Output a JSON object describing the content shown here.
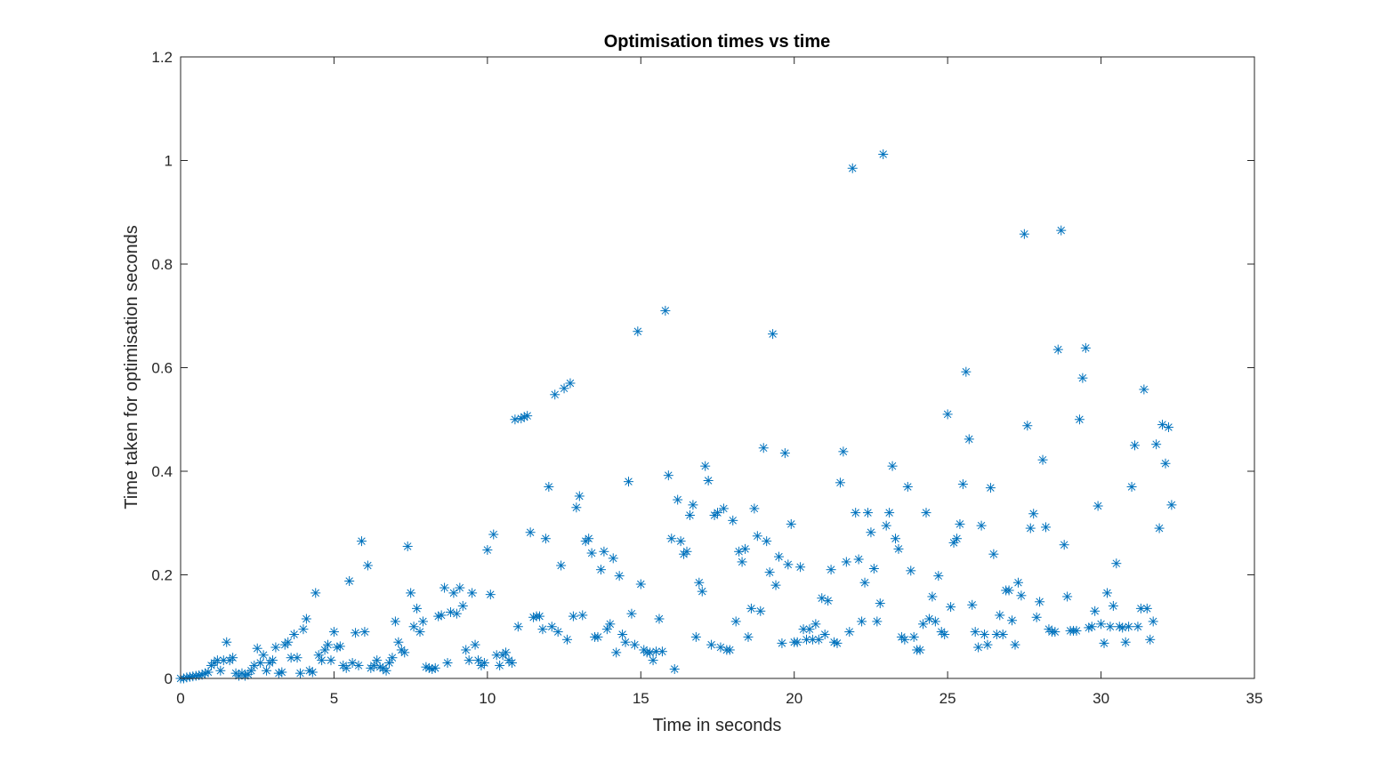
{
  "colors": {
    "marker": "#0072BD",
    "axis": "#262626",
    "background": "#ffffff"
  },
  "chart_data": {
    "type": "scatter",
    "title": "Optimisation times vs time",
    "xlabel": "Time in seconds",
    "ylabel": "Time taken for optimisation seconds",
    "xlim": [
      0,
      35
    ],
    "ylim": [
      0,
      1.2
    ],
    "xticks": [
      "0",
      "5",
      "10",
      "15",
      "20",
      "25",
      "30",
      "35"
    ],
    "yticks": [
      "0",
      "0.2",
      "0.4",
      "0.6",
      "0.8",
      "1",
      "1.2"
    ],
    "marker": "asterisk",
    "grid": false,
    "legend": "none",
    "points": [
      [
        0.0,
        0.0
      ],
      [
        0.1,
        0.0
      ],
      [
        0.2,
        0.002
      ],
      [
        0.3,
        0.003
      ],
      [
        0.4,
        0.004
      ],
      [
        0.5,
        0.005
      ],
      [
        0.6,
        0.006
      ],
      [
        0.7,
        0.007
      ],
      [
        0.8,
        0.01
      ],
      [
        0.9,
        0.012
      ],
      [
        1.0,
        0.025
      ],
      [
        1.1,
        0.03
      ],
      [
        1.2,
        0.035
      ],
      [
        1.3,
        0.015
      ],
      [
        1.4,
        0.035
      ],
      [
        1.5,
        0.07
      ],
      [
        1.6,
        0.035
      ],
      [
        1.7,
        0.04
      ],
      [
        1.8,
        0.01
      ],
      [
        1.9,
        0.005
      ],
      [
        2.0,
        0.01
      ],
      [
        2.1,
        0.005
      ],
      [
        2.2,
        0.008
      ],
      [
        2.3,
        0.015
      ],
      [
        2.4,
        0.025
      ],
      [
        2.5,
        0.058
      ],
      [
        2.6,
        0.03
      ],
      [
        2.7,
        0.045
      ],
      [
        2.8,
        0.015
      ],
      [
        2.9,
        0.03
      ],
      [
        3.0,
        0.035
      ],
      [
        3.1,
        0.06
      ],
      [
        3.2,
        0.01
      ],
      [
        3.3,
        0.012
      ],
      [
        3.4,
        0.065
      ],
      [
        3.5,
        0.07
      ],
      [
        3.6,
        0.04
      ],
      [
        3.7,
        0.085
      ],
      [
        3.8,
        0.04
      ],
      [
        3.9,
        0.01
      ],
      [
        4.0,
        0.095
      ],
      [
        4.1,
        0.115
      ],
      [
        4.2,
        0.015
      ],
      [
        4.3,
        0.012
      ],
      [
        4.4,
        0.165
      ],
      [
        4.5,
        0.045
      ],
      [
        4.6,
        0.035
      ],
      [
        4.7,
        0.055
      ],
      [
        4.8,
        0.065
      ],
      [
        4.9,
        0.035
      ],
      [
        5.0,
        0.09
      ],
      [
        5.1,
        0.06
      ],
      [
        5.2,
        0.062
      ],
      [
        5.3,
        0.025
      ],
      [
        5.4,
        0.02
      ],
      [
        5.5,
        0.188
      ],
      [
        5.6,
        0.03
      ],
      [
        5.7,
        0.088
      ],
      [
        5.8,
        0.025
      ],
      [
        5.9,
        0.265
      ],
      [
        6.0,
        0.09
      ],
      [
        6.1,
        0.218
      ],
      [
        6.2,
        0.02
      ],
      [
        6.3,
        0.025
      ],
      [
        6.4,
        0.035
      ],
      [
        6.5,
        0.022
      ],
      [
        6.6,
        0.02
      ],
      [
        6.7,
        0.015
      ],
      [
        6.8,
        0.03
      ],
      [
        6.9,
        0.04
      ],
      [
        7.0,
        0.11
      ],
      [
        7.1,
        0.07
      ],
      [
        7.2,
        0.055
      ],
      [
        7.3,
        0.05
      ],
      [
        7.4,
        0.255
      ],
      [
        7.5,
        0.165
      ],
      [
        7.6,
        0.1
      ],
      [
        7.7,
        0.135
      ],
      [
        7.8,
        0.09
      ],
      [
        7.9,
        0.11
      ],
      [
        8.0,
        0.022
      ],
      [
        8.1,
        0.02
      ],
      [
        8.2,
        0.018
      ],
      [
        8.3,
        0.02
      ],
      [
        8.4,
        0.12
      ],
      [
        8.5,
        0.122
      ],
      [
        8.6,
        0.175
      ],
      [
        8.7,
        0.03
      ],
      [
        8.8,
        0.128
      ],
      [
        8.9,
        0.165
      ],
      [
        9.0,
        0.125
      ],
      [
        9.1,
        0.175
      ],
      [
        9.2,
        0.14
      ],
      [
        9.3,
        0.055
      ],
      [
        9.4,
        0.035
      ],
      [
        9.5,
        0.165
      ],
      [
        9.6,
        0.065
      ],
      [
        9.7,
        0.035
      ],
      [
        9.8,
        0.025
      ],
      [
        9.9,
        0.03
      ],
      [
        10.0,
        0.248
      ],
      [
        10.1,
        0.162
      ],
      [
        10.2,
        0.278
      ],
      [
        10.3,
        0.045
      ],
      [
        10.4,
        0.025
      ],
      [
        10.5,
        0.045
      ],
      [
        10.6,
        0.05
      ],
      [
        10.7,
        0.035
      ],
      [
        10.8,
        0.03
      ],
      [
        10.9,
        0.5
      ],
      [
        11.0,
        0.1
      ],
      [
        11.1,
        0.502
      ],
      [
        11.2,
        0.505
      ],
      [
        11.3,
        0.507
      ],
      [
        11.4,
        0.282
      ],
      [
        11.5,
        0.118
      ],
      [
        11.6,
        0.12
      ],
      [
        11.7,
        0.12
      ],
      [
        11.8,
        0.095
      ],
      [
        11.9,
        0.27
      ],
      [
        12.0,
        0.37
      ],
      [
        12.1,
        0.1
      ],
      [
        12.2,
        0.548
      ],
      [
        12.3,
        0.09
      ],
      [
        12.4,
        0.218
      ],
      [
        12.5,
        0.56
      ],
      [
        12.6,
        0.075
      ],
      [
        12.7,
        0.57
      ],
      [
        12.8,
        0.12
      ],
      [
        12.9,
        0.33
      ],
      [
        13.0,
        0.352
      ],
      [
        13.1,
        0.122
      ],
      [
        13.2,
        0.265
      ],
      [
        13.3,
        0.27
      ],
      [
        13.4,
        0.242
      ],
      [
        13.5,
        0.08
      ],
      [
        13.6,
        0.08
      ],
      [
        13.7,
        0.21
      ],
      [
        13.8,
        0.245
      ],
      [
        13.9,
        0.095
      ],
      [
        14.0,
        0.105
      ],
      [
        14.1,
        0.232
      ],
      [
        14.2,
        0.05
      ],
      [
        14.3,
        0.198
      ],
      [
        14.4,
        0.085
      ],
      [
        14.5,
        0.07
      ],
      [
        14.6,
        0.38
      ],
      [
        14.7,
        0.125
      ],
      [
        14.8,
        0.065
      ],
      [
        14.9,
        0.67
      ],
      [
        15.0,
        0.182
      ],
      [
        15.1,
        0.055
      ],
      [
        15.2,
        0.05
      ],
      [
        15.3,
        0.05
      ],
      [
        15.4,
        0.035
      ],
      [
        15.5,
        0.052
      ],
      [
        15.6,
        0.115
      ],
      [
        15.7,
        0.052
      ],
      [
        15.8,
        0.71
      ],
      [
        15.9,
        0.392
      ],
      [
        16.0,
        0.27
      ],
      [
        16.1,
        0.018
      ],
      [
        16.2,
        0.345
      ],
      [
        16.3,
        0.265
      ],
      [
        16.4,
        0.24
      ],
      [
        16.5,
        0.245
      ],
      [
        16.6,
        0.315
      ],
      [
        16.7,
        0.335
      ],
      [
        16.8,
        0.08
      ],
      [
        16.9,
        0.185
      ],
      [
        17.0,
        0.168
      ],
      [
        17.1,
        0.41
      ],
      [
        17.2,
        0.382
      ],
      [
        17.3,
        0.065
      ],
      [
        17.4,
        0.315
      ],
      [
        17.5,
        0.32
      ],
      [
        17.6,
        0.06
      ],
      [
        17.7,
        0.328
      ],
      [
        17.8,
        0.055
      ],
      [
        17.9,
        0.055
      ],
      [
        18.0,
        0.305
      ],
      [
        18.1,
        0.11
      ],
      [
        18.2,
        0.245
      ],
      [
        18.3,
        0.225
      ],
      [
        18.4,
        0.25
      ],
      [
        18.5,
        0.08
      ],
      [
        18.6,
        0.135
      ],
      [
        18.7,
        0.328
      ],
      [
        18.8,
        0.275
      ],
      [
        18.9,
        0.13
      ],
      [
        19.0,
        0.445
      ],
      [
        19.1,
        0.265
      ],
      [
        19.2,
        0.205
      ],
      [
        19.3,
        0.665
      ],
      [
        19.4,
        0.18
      ],
      [
        19.5,
        0.235
      ],
      [
        19.6,
        0.068
      ],
      [
        19.7,
        0.435
      ],
      [
        19.8,
        0.22
      ],
      [
        19.9,
        0.298
      ],
      [
        20.0,
        0.07
      ],
      [
        20.1,
        0.07
      ],
      [
        20.2,
        0.215
      ],
      [
        20.3,
        0.095
      ],
      [
        20.4,
        0.075
      ],
      [
        20.5,
        0.095
      ],
      [
        20.6,
        0.075
      ],
      [
        20.7,
        0.105
      ],
      [
        20.8,
        0.075
      ],
      [
        20.9,
        0.155
      ],
      [
        21.0,
        0.085
      ],
      [
        21.1,
        0.15
      ],
      [
        21.2,
        0.21
      ],
      [
        21.3,
        0.07
      ],
      [
        21.4,
        0.068
      ],
      [
        21.5,
        0.378
      ],
      [
        21.6,
        0.438
      ],
      [
        21.7,
        0.225
      ],
      [
        21.8,
        0.09
      ],
      [
        21.9,
        0.985
      ],
      [
        22.0,
        0.32
      ],
      [
        22.1,
        0.23
      ],
      [
        22.2,
        0.11
      ],
      [
        22.3,
        0.185
      ],
      [
        22.4,
        0.32
      ],
      [
        22.5,
        0.282
      ],
      [
        22.6,
        0.212
      ],
      [
        22.7,
        0.11
      ],
      [
        22.8,
        0.145
      ],
      [
        22.9,
        1.012
      ],
      [
        23.0,
        0.295
      ],
      [
        23.1,
        0.32
      ],
      [
        23.2,
        0.41
      ],
      [
        23.3,
        0.27
      ],
      [
        23.4,
        0.25
      ],
      [
        23.5,
        0.08
      ],
      [
        23.6,
        0.075
      ],
      [
        23.7,
        0.37
      ],
      [
        23.8,
        0.208
      ],
      [
        23.9,
        0.08
      ],
      [
        24.0,
        0.055
      ],
      [
        24.1,
        0.055
      ],
      [
        24.2,
        0.105
      ],
      [
        24.3,
        0.32
      ],
      [
        24.4,
        0.115
      ],
      [
        24.5,
        0.158
      ],
      [
        24.6,
        0.11
      ],
      [
        24.7,
        0.198
      ],
      [
        24.8,
        0.09
      ],
      [
        24.9,
        0.085
      ],
      [
        25.0,
        0.51
      ],
      [
        25.1,
        0.138
      ],
      [
        25.2,
        0.262
      ],
      [
        25.3,
        0.27
      ],
      [
        25.4,
        0.298
      ],
      [
        25.5,
        0.375
      ],
      [
        25.6,
        0.592
      ],
      [
        25.7,
        0.462
      ],
      [
        25.8,
        0.142
      ],
      [
        25.9,
        0.09
      ],
      [
        26.0,
        0.06
      ],
      [
        26.1,
        0.295
      ],
      [
        26.2,
        0.085
      ],
      [
        26.3,
        0.065
      ],
      [
        26.4,
        0.368
      ],
      [
        26.5,
        0.24
      ],
      [
        26.6,
        0.085
      ],
      [
        26.7,
        0.122
      ],
      [
        26.8,
        0.085
      ],
      [
        26.9,
        0.17
      ],
      [
        27.0,
        0.17
      ],
      [
        27.1,
        0.112
      ],
      [
        27.2,
        0.065
      ],
      [
        27.3,
        0.185
      ],
      [
        27.4,
        0.16
      ],
      [
        27.5,
        0.858
      ],
      [
        27.6,
        0.488
      ],
      [
        27.7,
        0.29
      ],
      [
        27.8,
        0.318
      ],
      [
        27.9,
        0.118
      ],
      [
        28.0,
        0.148
      ],
      [
        28.1,
        0.422
      ],
      [
        28.2,
        0.292
      ],
      [
        28.3,
        0.095
      ],
      [
        28.4,
        0.09
      ],
      [
        28.5,
        0.09
      ],
      [
        28.6,
        0.635
      ],
      [
        28.7,
        0.865
      ],
      [
        28.8,
        0.258
      ],
      [
        28.9,
        0.158
      ],
      [
        29.0,
        0.092
      ],
      [
        29.1,
        0.092
      ],
      [
        29.2,
        0.092
      ],
      [
        29.3,
        0.5
      ],
      [
        29.4,
        0.58
      ],
      [
        29.5,
        0.638
      ],
      [
        29.6,
        0.098
      ],
      [
        29.7,
        0.1
      ],
      [
        29.8,
        0.13
      ],
      [
        29.9,
        0.333
      ],
      [
        30.0,
        0.105
      ],
      [
        30.1,
        0.068
      ],
      [
        30.2,
        0.165
      ],
      [
        30.3,
        0.1
      ],
      [
        30.4,
        0.14
      ],
      [
        30.5,
        0.222
      ],
      [
        30.6,
        0.1
      ],
      [
        30.7,
        0.098
      ],
      [
        30.8,
        0.07
      ],
      [
        30.9,
        0.1
      ],
      [
        31.0,
        0.37
      ],
      [
        31.1,
        0.45
      ],
      [
        31.2,
        0.1
      ],
      [
        31.3,
        0.135
      ],
      [
        31.4,
        0.558
      ],
      [
        31.5,
        0.135
      ],
      [
        31.6,
        0.075
      ],
      [
        31.7,
        0.11
      ],
      [
        31.8,
        0.452
      ],
      [
        31.9,
        0.29
      ],
      [
        32.0,
        0.49
      ],
      [
        32.1,
        0.415
      ],
      [
        32.2,
        0.485
      ],
      [
        32.3,
        0.335
      ]
    ]
  }
}
